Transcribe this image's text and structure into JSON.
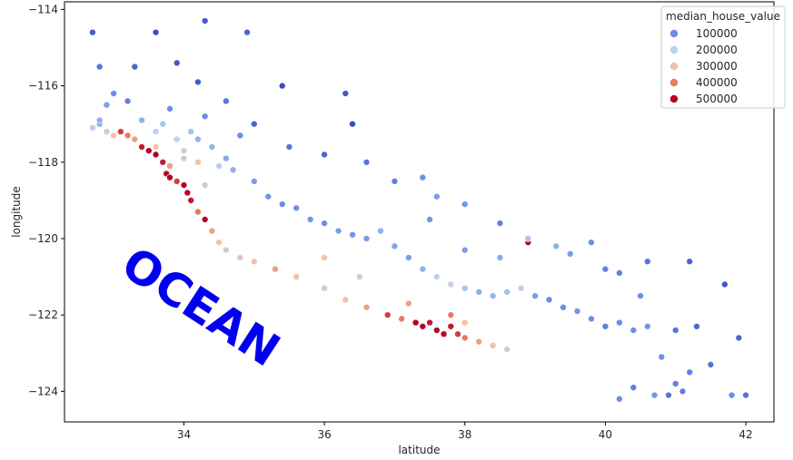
{
  "chart_data": {
    "type": "scatter",
    "title": "",
    "xlabel": "latitude",
    "ylabel": "longitude",
    "xlim": [
      32.3,
      42.4
    ],
    "ylim": [
      -124.8,
      -113.8
    ],
    "xticks": [
      34,
      36,
      38,
      40,
      42
    ],
    "yticks": [
      -114,
      -116,
      -118,
      -120,
      -122,
      -124
    ],
    "legend": {
      "title": "median_house_value",
      "position": "top-right",
      "entries": [
        {
          "label": "100000",
          "color": "#6b8ee8"
        },
        {
          "label": "200000",
          "color": "#b9cff5"
        },
        {
          "label": "300000",
          "color": "#f1c2a8"
        },
        {
          "label": "400000",
          "color": "#e57b60"
        },
        {
          "label": "500000",
          "color": "#b40426"
        }
      ]
    },
    "annotation": {
      "text": "OCEAN",
      "color": "#0000ee"
    },
    "point_count_note": "dense cloud along coastline",
    "series": [
      {
        "name": "points",
        "points": [
          [
            32.7,
            -117.1,
            200000
          ],
          [
            32.8,
            -117.0,
            150000
          ],
          [
            32.9,
            -117.2,
            250000
          ],
          [
            33.0,
            -117.3,
            300000
          ],
          [
            33.1,
            -117.2,
            450000
          ],
          [
            33.2,
            -117.3,
            400000
          ],
          [
            33.3,
            -117.4,
            350000
          ],
          [
            33.4,
            -117.6,
            480000
          ],
          [
            33.5,
            -117.7,
            500000
          ],
          [
            33.6,
            -117.8,
            500000
          ],
          [
            33.7,
            -118.0,
            480000
          ],
          [
            33.75,
            -118.3,
            500000
          ],
          [
            33.8,
            -118.4,
            500000
          ],
          [
            33.9,
            -118.5,
            450000
          ],
          [
            34.0,
            -118.6,
            500000
          ],
          [
            34.05,
            -118.8,
            500000
          ],
          [
            34.1,
            -119.0,
            480000
          ],
          [
            34.2,
            -119.3,
            400000
          ],
          [
            34.3,
            -119.5,
            500000
          ],
          [
            34.4,
            -119.8,
            350000
          ],
          [
            34.5,
            -120.1,
            300000
          ],
          [
            34.6,
            -120.3,
            250000
          ],
          [
            34.8,
            -120.5,
            250000
          ],
          [
            35.0,
            -120.6,
            300000
          ],
          [
            35.3,
            -120.8,
            350000
          ],
          [
            35.6,
            -121.0,
            300000
          ],
          [
            36.0,
            -121.3,
            250000
          ],
          [
            36.3,
            -121.6,
            300000
          ],
          [
            36.6,
            -121.8,
            350000
          ],
          [
            36.9,
            -122.0,
            450000
          ],
          [
            37.1,
            -122.1,
            400000
          ],
          [
            37.3,
            -122.2,
            500000
          ],
          [
            37.4,
            -122.3,
            500000
          ],
          [
            37.5,
            -122.2,
            480000
          ],
          [
            37.6,
            -122.4,
            500000
          ],
          [
            37.7,
            -122.5,
            500000
          ],
          [
            37.8,
            -122.3,
            480000
          ],
          [
            37.9,
            -122.5,
            450000
          ],
          [
            38.0,
            -122.6,
            400000
          ],
          [
            38.2,
            -122.7,
            350000
          ],
          [
            38.4,
            -122.8,
            300000
          ],
          [
            38.6,
            -122.9,
            250000
          ],
          [
            38.9,
            -120.1,
            500000
          ],
          [
            32.8,
            -116.9,
            150000
          ],
          [
            32.9,
            -116.5,
            120000
          ],
          [
            33.0,
            -116.2,
            100000
          ],
          [
            33.2,
            -116.4,
            90000
          ],
          [
            33.4,
            -116.9,
            150000
          ],
          [
            33.6,
            -117.2,
            200000
          ],
          [
            33.7,
            -117.0,
            180000
          ],
          [
            33.8,
            -116.6,
            100000
          ],
          [
            33.9,
            -117.4,
            220000
          ],
          [
            34.0,
            -117.7,
            250000
          ],
          [
            34.1,
            -117.2,
            180000
          ],
          [
            34.2,
            -117.4,
            150000
          ],
          [
            34.3,
            -116.8,
            100000
          ],
          [
            34.4,
            -117.6,
            160000
          ],
          [
            34.5,
            -118.1,
            200000
          ],
          [
            34.6,
            -117.9,
            140000
          ],
          [
            34.7,
            -118.2,
            150000
          ],
          [
            34.8,
            -117.3,
            100000
          ],
          [
            35.0,
            -118.5,
            120000
          ],
          [
            35.2,
            -118.9,
            110000
          ],
          [
            35.4,
            -119.1,
            100000
          ],
          [
            35.6,
            -119.2,
            100000
          ],
          [
            35.8,
            -119.5,
            110000
          ],
          [
            36.0,
            -119.6,
            100000
          ],
          [
            36.2,
            -119.8,
            120000
          ],
          [
            36.4,
            -119.9,
            110000
          ],
          [
            36.6,
            -120.0,
            120000
          ],
          [
            36.8,
            -119.8,
            150000
          ],
          [
            37.0,
            -120.2,
            130000
          ],
          [
            37.2,
            -120.5,
            120000
          ],
          [
            37.4,
            -120.8,
            150000
          ],
          [
            37.6,
            -121.0,
            200000
          ],
          [
            37.8,
            -121.2,
            220000
          ],
          [
            38.0,
            -121.3,
            180000
          ],
          [
            38.2,
            -121.4,
            150000
          ],
          [
            38.4,
            -121.5,
            160000
          ],
          [
            38.6,
            -121.4,
            170000
          ],
          [
            38.8,
            -121.3,
            200000
          ],
          [
            39.0,
            -121.5,
            120000
          ],
          [
            39.2,
            -121.6,
            100000
          ],
          [
            39.4,
            -121.8,
            100000
          ],
          [
            39.6,
            -121.9,
            110000
          ],
          [
            39.8,
            -122.1,
            100000
          ],
          [
            40.0,
            -122.3,
            90000
          ],
          [
            40.2,
            -122.2,
            100000
          ],
          [
            40.4,
            -122.4,
            100000
          ],
          [
            40.6,
            -122.3,
            110000
          ],
          [
            40.8,
            -123.1,
            100000
          ],
          [
            41.0,
            -123.8,
            90000
          ],
          [
            41.2,
            -123.5,
            90000
          ],
          [
            41.5,
            -123.3,
            80000
          ],
          [
            41.8,
            -124.1,
            100000
          ],
          [
            42.0,
            -124.1,
            80000
          ],
          [
            41.9,
            -122.6,
            70000
          ],
          [
            41.7,
            -121.2,
            60000
          ],
          [
            41.2,
            -120.6,
            70000
          ],
          [
            40.6,
            -120.6,
            80000
          ],
          [
            40.2,
            -120.9,
            90000
          ],
          [
            39.8,
            -120.1,
            100000
          ],
          [
            39.3,
            -120.2,
            150000
          ],
          [
            38.9,
            -120.0,
            180000
          ],
          [
            38.5,
            -120.5,
            140000
          ],
          [
            38.0,
            -120.3,
            120000
          ],
          [
            37.5,
            -119.5,
            110000
          ],
          [
            37.0,
            -118.5,
            90000
          ],
          [
            36.6,
            -118.0,
            80000
          ],
          [
            36.0,
            -117.8,
            70000
          ],
          [
            35.5,
            -117.6,
            80000
          ],
          [
            35.0,
            -117.0,
            70000
          ],
          [
            34.6,
            -116.4,
            80000
          ],
          [
            34.2,
            -115.9,
            60000
          ],
          [
            33.9,
            -115.4,
            60000
          ],
          [
            33.6,
            -114.6,
            50000
          ],
          [
            34.3,
            -114.3,
            60000
          ],
          [
            34.9,
            -114.6,
            70000
          ],
          [
            33.3,
            -115.5,
            70000
          ],
          [
            32.8,
            -115.5,
            80000
          ],
          [
            32.7,
            -114.6,
            60000
          ],
          [
            35.4,
            -116.0,
            50000
          ],
          [
            36.3,
            -116.2,
            60000
          ],
          [
            36.4,
            -117.0,
            50000
          ],
          [
            37.4,
            -118.4,
            100000
          ],
          [
            37.6,
            -118.9,
            120000
          ],
          [
            38.0,
            -119.1,
            110000
          ],
          [
            38.5,
            -119.6,
            90000
          ],
          [
            39.5,
            -120.4,
            120000
          ],
          [
            40.0,
            -120.8,
            90000
          ],
          [
            40.5,
            -121.5,
            100000
          ],
          [
            41.0,
            -122.4,
            80000
          ],
          [
            41.3,
            -122.3,
            70000
          ],
          [
            40.4,
            -123.9,
            90000
          ],
          [
            40.2,
            -124.2,
            100000
          ],
          [
            40.7,
            -124.1,
            110000
          ],
          [
            41.1,
            -124.0,
            90000
          ],
          [
            40.9,
            -124.1,
            80000
          ],
          [
            36.0,
            -120.5,
            300000
          ],
          [
            36.5,
            -121.0,
            250000
          ],
          [
            37.2,
            -121.7,
            350000
          ],
          [
            37.8,
            -122.0,
            400000
          ],
          [
            38.0,
            -122.2,
            300000
          ],
          [
            34.3,
            -118.6,
            250000
          ],
          [
            34.2,
            -118.0,
            300000
          ],
          [
            33.8,
            -118.1,
            350000
          ],
          [
            33.6,
            -117.6,
            300000
          ],
          [
            34.0,
            -117.9,
            250000
          ]
        ]
      }
    ]
  }
}
